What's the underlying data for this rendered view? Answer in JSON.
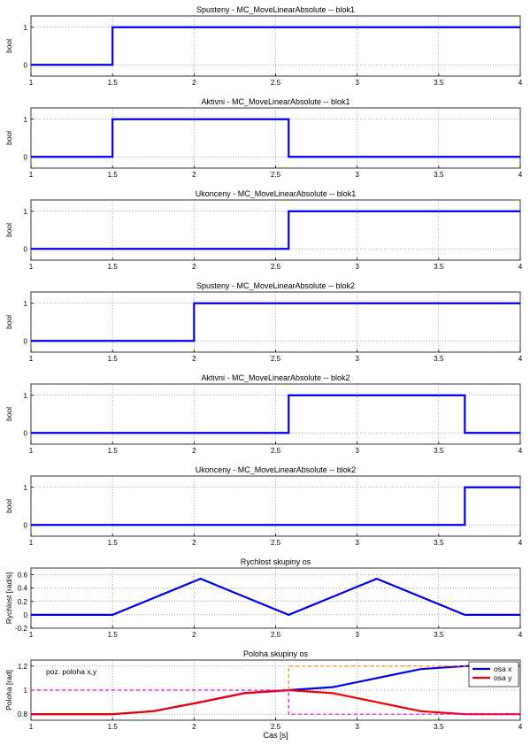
{
  "chart_data": [
    {
      "type": "line",
      "title": "Spusteny - MC_MoveLinearAbsolute -- blok1",
      "ylabel": "bool",
      "xlim": [
        1,
        4
      ],
      "ylim": [
        -0.3,
        1.3
      ],
      "xticks": [
        "1",
        "1.5",
        "2",
        "2.5",
        "3",
        "3.5",
        "4"
      ],
      "yticks": [
        "0",
        "1"
      ],
      "grid": true,
      "series": [
        {
          "color": "#0000ee",
          "x": [
            1,
            1.5,
            1.5,
            4
          ],
          "y": [
            0,
            0,
            1,
            1
          ]
        }
      ]
    },
    {
      "type": "line",
      "title": "Aktivni - MC_MoveLinearAbsolute -- blok1",
      "ylabel": "bool",
      "xlim": [
        1,
        4
      ],
      "ylim": [
        -0.3,
        1.3
      ],
      "xticks": [
        "1",
        "1.5",
        "2",
        "2.5",
        "3",
        "3.5",
        "4"
      ],
      "yticks": [
        "0",
        "1"
      ],
      "grid": true,
      "series": [
        {
          "color": "#0000ee",
          "x": [
            1,
            1.5,
            1.5,
            2.58,
            2.58,
            4
          ],
          "y": [
            0,
            0,
            1,
            1,
            0,
            0
          ]
        }
      ]
    },
    {
      "type": "line",
      "title": "Ukonceny - MC_MoveLinearAbsolute -- blok1",
      "ylabel": "bool",
      "xlim": [
        1,
        4
      ],
      "ylim": [
        -0.3,
        1.3
      ],
      "xticks": [
        "1",
        "1.5",
        "2",
        "2.5",
        "3",
        "3.5",
        "4"
      ],
      "yticks": [
        "0",
        "1"
      ],
      "grid": true,
      "series": [
        {
          "color": "#0000ee",
          "x": [
            1,
            2.58,
            2.58,
            4
          ],
          "y": [
            0,
            0,
            1,
            1
          ]
        }
      ]
    },
    {
      "type": "line",
      "title": "Spusteny - MC_MoveLinearAbsolute -- blok2",
      "ylabel": "bool",
      "xlim": [
        1,
        4
      ],
      "ylim": [
        -0.3,
        1.3
      ],
      "xticks": [
        "1",
        "1.5",
        "2",
        "2.5",
        "3",
        "3.5",
        "4"
      ],
      "yticks": [
        "0",
        "1"
      ],
      "grid": true,
      "series": [
        {
          "color": "#0000ee",
          "x": [
            1,
            2,
            2,
            4
          ],
          "y": [
            0,
            0,
            1,
            1
          ]
        }
      ]
    },
    {
      "type": "line",
      "title": "Aktivni - MC_MoveLinearAbsolute -- blok2",
      "ylabel": "bool",
      "xlim": [
        1,
        4
      ],
      "ylim": [
        -0.3,
        1.3
      ],
      "xticks": [
        "1",
        "1.5",
        "2",
        "2.5",
        "3",
        "3.5",
        "4"
      ],
      "yticks": [
        "0",
        "1"
      ],
      "grid": true,
      "series": [
        {
          "color": "#0000ee",
          "x": [
            1,
            2.58,
            2.58,
            3.66,
            3.66,
            4
          ],
          "y": [
            0,
            0,
            1,
            1,
            0,
            0
          ]
        }
      ]
    },
    {
      "type": "line",
      "title": "Ukonceny - MC_MoveLinearAbsolute -- blok2",
      "ylabel": "bool",
      "xlim": [
        1,
        4
      ],
      "ylim": [
        -0.3,
        1.3
      ],
      "xticks": [
        "1",
        "1.5",
        "2",
        "2.5",
        "3",
        "3.5",
        "4"
      ],
      "yticks": [
        "0",
        "1"
      ],
      "grid": true,
      "series": [
        {
          "color": "#0000ee",
          "x": [
            1,
            3.66,
            3.66,
            4
          ],
          "y": [
            0,
            0,
            1,
            1
          ]
        }
      ]
    },
    {
      "type": "line",
      "title": "Rychlost skupiny os",
      "ylabel": "Rychlost [rad/s]",
      "xlim": [
        1,
        4
      ],
      "ylim": [
        -0.2,
        0.7
      ],
      "xticks": [
        "1",
        "1.5",
        "2",
        "2.5",
        "3",
        "3.5",
        "4"
      ],
      "yticks": [
        "-0.2",
        "0",
        "0.2",
        "0.4",
        "0.6"
      ],
      "grid": true,
      "series": [
        {
          "color": "#0000ee",
          "x": [
            1,
            1.5,
            2.04,
            2.58,
            3.12,
            3.66,
            4
          ],
          "y": [
            0,
            0,
            0.54,
            0,
            0.54,
            0,
            0
          ]
        }
      ]
    },
    {
      "type": "line",
      "title": "Poloha skupiny os",
      "ylabel": "Poloha [rad]",
      "xlabel": "Cas [s]",
      "xlim": [
        1,
        4
      ],
      "ylim": [
        0.75,
        1.25
      ],
      "xticks": [
        "1",
        "1.5",
        "2",
        "2.5",
        "3",
        "3.5",
        "4"
      ],
      "yticks": [
        "0.8",
        "1",
        "1.2"
      ],
      "grid": true,
      "legend": "top-right",
      "annotation": "poz. poloha x,y",
      "series": [
        {
          "name": "osa x",
          "color": "#0000ee",
          "x": [
            1,
            1.5,
            1.75,
            2.04,
            2.31,
            2.58,
            2.85,
            3.12,
            3.39,
            3.66,
            4
          ],
          "y": [
            0.8,
            0.8,
            0.825,
            0.9,
            0.975,
            1.0,
            1.025,
            1.1,
            1.175,
            1.2,
            1.2
          ]
        },
        {
          "name": "osa y",
          "color": "#ee0000",
          "x": [
            1,
            1.5,
            1.75,
            2.04,
            2.31,
            2.58,
            2.85,
            3.12,
            3.39,
            3.66,
            4
          ],
          "y": [
            0.8,
            0.8,
            0.825,
            0.9,
            0.975,
            1.0,
            0.975,
            0.9,
            0.825,
            0.8,
            0.8
          ]
        },
        {
          "color": "#ff8000",
          "dashed": true,
          "x": [
            2.58,
            2.58,
            4
          ],
          "y": [
            1.0,
            1.2,
            1.2
          ]
        },
        {
          "color": "#ee00ee",
          "dashed": true,
          "x": [
            1,
            2.58,
            2.58,
            4
          ],
          "y": [
            1.0,
            1.0,
            0.8,
            0.8
          ]
        }
      ]
    }
  ]
}
